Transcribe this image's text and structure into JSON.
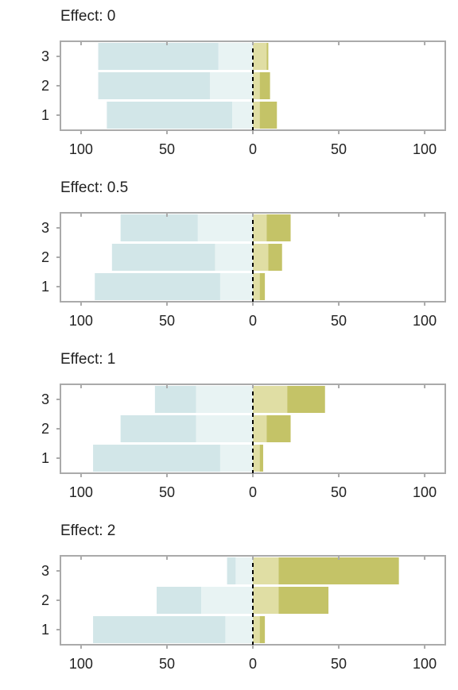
{
  "chart_data": {
    "type": "bar",
    "orientation": "horizontal-diverging",
    "xlim": [
      -112,
      112
    ],
    "x_ticks": [
      -100,
      -50,
      0,
      50,
      100
    ],
    "x_tick_labels": [
      "100",
      "50",
      "0",
      "50",
      "100"
    ],
    "categories": [
      "1",
      "2",
      "3"
    ],
    "colors": {
      "left_dark": "#d2e6e8",
      "left_light": "#e8f3f3",
      "right_light": "#e0dea4",
      "right_dark": "#c4c367",
      "frame": "#aaaaaa",
      "zero_line": "#000000"
    },
    "panels": [
      {
        "title": "Effect: 0",
        "bars": [
          {
            "category": "1",
            "left_dark": 73,
            "left_light": 12,
            "right_light": 4,
            "right_dark": 10
          },
          {
            "category": "2",
            "left_dark": 65,
            "left_light": 25,
            "right_light": 4,
            "right_dark": 6
          },
          {
            "category": "3",
            "left_dark": 70,
            "left_light": 20,
            "right_light": 8,
            "right_dark": 1
          }
        ]
      },
      {
        "title": "Effect: 0.5",
        "bars": [
          {
            "category": "1",
            "left_dark": 73,
            "left_light": 19,
            "right_light": 4,
            "right_dark": 3
          },
          {
            "category": "2",
            "left_dark": 60,
            "left_light": 22,
            "right_light": 9,
            "right_dark": 8
          },
          {
            "category": "3",
            "left_dark": 45,
            "left_light": 32,
            "right_light": 8,
            "right_dark": 14
          }
        ]
      },
      {
        "title": "Effect: 1",
        "bars": [
          {
            "category": "1",
            "left_dark": 74,
            "left_light": 19,
            "right_light": 4,
            "right_dark": 2
          },
          {
            "category": "2",
            "left_dark": 44,
            "left_light": 33,
            "right_light": 8,
            "right_dark": 14
          },
          {
            "category": "3",
            "left_dark": 24,
            "left_light": 33,
            "right_light": 20,
            "right_dark": 22
          }
        ]
      },
      {
        "title": "Effect: 2",
        "bars": [
          {
            "category": "1",
            "left_dark": 77,
            "left_light": 16,
            "right_light": 4,
            "right_dark": 3
          },
          {
            "category": "2",
            "left_dark": 26,
            "left_light": 30,
            "right_light": 15,
            "right_dark": 29
          },
          {
            "category": "3",
            "left_dark": 5,
            "left_light": 10,
            "right_light": 15,
            "right_dark": 70
          }
        ]
      }
    ]
  }
}
